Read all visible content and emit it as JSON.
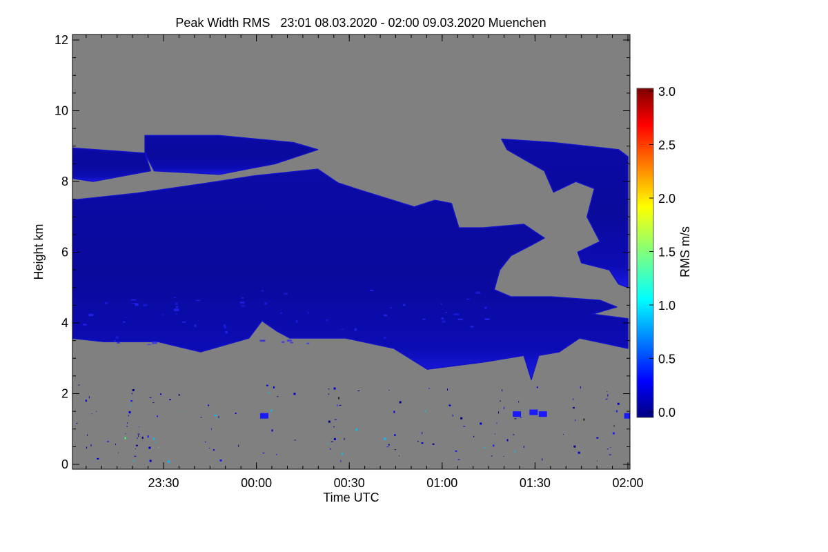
{
  "chart_data": {
    "type": "heatmap",
    "title": "Peak Width RMS   23:01 08.03.2020 - 02:00 09.03.2020 Muenchen",
    "xlabel": "Time UTC",
    "ylabel": "Height km",
    "x_unit": "hours after 23:00 UTC",
    "xlim": [
      0.017,
      3.0
    ],
    "ylim": [
      0,
      12
    ],
    "xticks": [
      {
        "value": 0.5,
        "label": "23:30"
      },
      {
        "value": 1.0,
        "label": "00:00"
      },
      {
        "value": 1.5,
        "label": "00:30"
      },
      {
        "value": 2.0,
        "label": "01:00"
      },
      {
        "value": 2.5,
        "label": "01:30"
      },
      {
        "value": 3.0,
        "label": "02:00"
      }
    ],
    "yticks": [
      {
        "value": 0,
        "label": "0"
      },
      {
        "value": 2,
        "label": "2"
      },
      {
        "value": 4,
        "label": "4"
      },
      {
        "value": 6,
        "label": "6"
      },
      {
        "value": 8,
        "label": "8"
      },
      {
        "value": 10,
        "label": "10"
      },
      {
        "value": 12,
        "label": "12"
      }
    ],
    "background_color": "#808080",
    "colorbar": {
      "label": "RMS m/s",
      "range": [
        0,
        3
      ],
      "colormap": "jet",
      "ticks": [
        {
          "value": 0.0,
          "label": "0.0"
        },
        {
          "value": 0.5,
          "label": "0.5"
        },
        {
          "value": 1.0,
          "label": "1.0"
        },
        {
          "value": 1.5,
          "label": "1.5"
        },
        {
          "value": 2.0,
          "label": "2.0"
        },
        {
          "value": 2.5,
          "label": "2.5"
        },
        {
          "value": 3.0,
          "label": "3.0"
        }
      ]
    },
    "regions": [
      {
        "name": "main-cloud-layer",
        "typical_rms": 0.2,
        "points": [
          [
            0.0,
            7.47
          ],
          [
            0.36,
            7.67
          ],
          [
            0.74,
            7.96
          ],
          [
            0.99,
            8.16
          ],
          [
            1.33,
            8.35
          ],
          [
            1.44,
            7.96
          ],
          [
            1.55,
            7.77
          ],
          [
            1.85,
            7.28
          ],
          [
            1.96,
            7.47
          ],
          [
            2.05,
            7.38
          ],
          [
            2.09,
            6.69
          ],
          [
            2.22,
            6.69
          ],
          [
            2.44,
            6.79
          ],
          [
            2.55,
            6.4
          ],
          [
            2.48,
            6.2
          ],
          [
            2.37,
            5.9
          ],
          [
            2.31,
            5.5
          ],
          [
            2.28,
            4.94
          ],
          [
            2.37,
            4.74
          ],
          [
            2.59,
            4.74
          ],
          [
            2.85,
            4.64
          ],
          [
            2.94,
            4.45
          ],
          [
            2.81,
            4.25
          ],
          [
            3.0,
            4.12
          ],
          [
            3.0,
            3.28
          ],
          [
            2.74,
            3.57
          ],
          [
            2.63,
            3.18
          ],
          [
            2.52,
            3.08
          ],
          [
            2.48,
            2.4
          ],
          [
            2.44,
            3.08
          ],
          [
            2.22,
            2.89
          ],
          [
            1.92,
            2.69
          ],
          [
            1.74,
            3.28
          ],
          [
            1.48,
            3.57
          ],
          [
            1.18,
            3.57
          ],
          [
            1.11,
            3.77
          ],
          [
            1.03,
            4.06
          ],
          [
            0.96,
            3.57
          ],
          [
            0.7,
            3.18
          ],
          [
            0.47,
            3.47
          ],
          [
            0.18,
            3.47
          ],
          [
            0.0,
            3.57
          ]
        ]
      },
      {
        "name": "upper-left-layer",
        "typical_rms": 0.2,
        "points": [
          [
            0.0,
            8.95
          ],
          [
            0.4,
            8.8
          ],
          [
            0.43,
            8.3
          ],
          [
            0.12,
            8.0
          ],
          [
            0.0,
            8.1
          ]
        ]
      },
      {
        "name": "upper-middle-layer",
        "typical_rms": 0.2,
        "points": [
          [
            0.4,
            9.3
          ],
          [
            0.8,
            9.3
          ],
          [
            1.2,
            9.1
          ],
          [
            1.33,
            8.9
          ],
          [
            1.1,
            8.5
          ],
          [
            0.8,
            8.2
          ],
          [
            0.45,
            8.3
          ],
          [
            0.4,
            8.8
          ]
        ]
      },
      {
        "name": "upper-right-layer",
        "typical_rms": 0.2,
        "points": [
          [
            2.32,
            9.2
          ],
          [
            2.6,
            9.1
          ],
          [
            2.95,
            8.9
          ],
          [
            3.0,
            8.7
          ],
          [
            3.0,
            5.0
          ],
          [
            2.95,
            5.1
          ],
          [
            2.9,
            5.5
          ],
          [
            2.75,
            5.7
          ],
          [
            2.73,
            6.0
          ],
          [
            2.85,
            6.3
          ],
          [
            2.78,
            7.0
          ],
          [
            2.82,
            7.8
          ],
          [
            2.72,
            8.0
          ],
          [
            2.6,
            7.7
          ],
          [
            2.55,
            8.3
          ],
          [
            2.45,
            8.6
          ],
          [
            2.35,
            8.9
          ]
        ]
      }
    ]
  }
}
